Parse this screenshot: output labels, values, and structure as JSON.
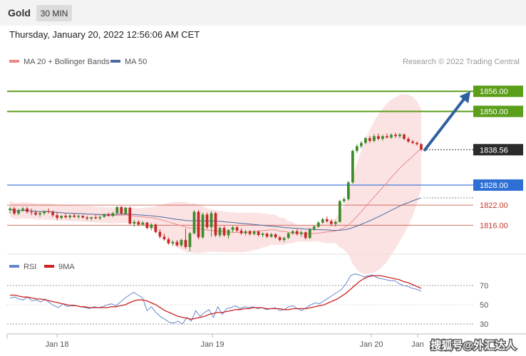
{
  "header": {
    "symbol": "Gold",
    "timeframe": "30 MIN",
    "timestamp": "Thursday, January 20, 2022 12:56:06 AM CET"
  },
  "legend": {
    "ma20_label": "MA 20 + Bollinger Bands",
    "ma50_label": "MA 50",
    "copyright": "Research © 2022 Trading Central",
    "colors": {
      "ma20": "#e88a8a",
      "ma50": "#4a6aa0",
      "bands": "#fbdada"
    }
  },
  "rsi_legend": {
    "rsi_label": "RSI",
    "ma9_label": "9MA",
    "colors": {
      "rsi": "#6688cc",
      "ma9": "#cc2222"
    }
  },
  "watermark": "搜狐号@外汇达人",
  "chart_data": [
    {
      "type": "candlestick",
      "ylim": [
        1808,
        1862
      ],
      "x_labels": [
        "Jan 18",
        "Jan 19",
        "Jan 20",
        "Jan"
      ],
      "current_price": {
        "label": "1838.56",
        "value": 1838.56
      },
      "levels": [
        {
          "label": "1856.00",
          "value": 1856.0,
          "kind": "resistance",
          "color": "#5a9e1a"
        },
        {
          "label": "1850.00",
          "value": 1850.0,
          "kind": "resistance",
          "color": "#5a9e1a"
        },
        {
          "label": "1828.00",
          "value": 1828.0,
          "kind": "pivot",
          "color": "#2e6fd6"
        },
        {
          "label": "1822.00",
          "value": 1822.0,
          "kind": "support",
          "color": "#c0392b"
        },
        {
          "label": "1816.00",
          "value": 1816.0,
          "kind": "support",
          "color": "#c0392b"
        }
      ],
      "projection": {
        "from": 1838.5,
        "to": 1856.0,
        "color": "#2e5fa0"
      },
      "candles": [
        [
          1820.5,
          1821.5,
          1819.5,
          1821.0
        ],
        [
          1821.0,
          1821.5,
          1819.0,
          1819.5
        ],
        [
          1819.5,
          1821.0,
          1819.0,
          1820.5
        ],
        [
          1820.5,
          1821.5,
          1820.0,
          1821.0
        ],
        [
          1821.0,
          1821.5,
          1819.5,
          1820.0
        ],
        [
          1820.0,
          1821.0,
          1819.0,
          1819.8
        ],
        [
          1819.8,
          1820.5,
          1818.8,
          1819.2
        ],
        [
          1819.2,
          1820.0,
          1818.5,
          1819.6
        ],
        [
          1819.6,
          1820.5,
          1819.0,
          1820.2
        ],
        [
          1820.2,
          1821.0,
          1819.5,
          1820.0
        ],
        [
          1820.0,
          1820.5,
          1818.5,
          1819.0
        ],
        [
          1819.0,
          1819.8,
          1817.5,
          1818.2
        ],
        [
          1818.2,
          1819.0,
          1817.8,
          1818.8
        ],
        [
          1818.8,
          1819.5,
          1818.0,
          1818.4
        ],
        [
          1818.4,
          1819.2,
          1817.8,
          1818.9
        ],
        [
          1818.9,
          1819.5,
          1818.2,
          1818.5
        ],
        [
          1818.5,
          1819.2,
          1817.9,
          1818.8
        ],
        [
          1818.8,
          1819.0,
          1818.0,
          1818.3
        ],
        [
          1818.3,
          1818.8,
          1817.5,
          1818.0
        ],
        [
          1818.0,
          1818.6,
          1817.4,
          1818.4
        ],
        [
          1818.4,
          1819.0,
          1817.8,
          1818.1
        ],
        [
          1818.1,
          1818.7,
          1817.6,
          1818.5
        ],
        [
          1818.5,
          1819.5,
          1818.3,
          1819.2
        ],
        [
          1819.2,
          1819.8,
          1818.6,
          1818.8
        ],
        [
          1818.8,
          1820.0,
          1818.5,
          1819.6
        ],
        [
          1819.6,
          1821.8,
          1819.4,
          1821.4
        ],
        [
          1821.4,
          1821.8,
          1819.2,
          1819.5
        ],
        [
          1819.5,
          1821.5,
          1819.0,
          1821.2
        ],
        [
          1821.2,
          1821.6,
          1816.2,
          1816.5
        ],
        [
          1816.5,
          1817.6,
          1815.6,
          1817.0
        ],
        [
          1817.0,
          1817.5,
          1815.8,
          1816.2
        ],
        [
          1816.2,
          1817.2,
          1815.9,
          1816.8
        ],
        [
          1816.8,
          1817.0,
          1814.8,
          1815.2
        ],
        [
          1815.2,
          1816.6,
          1814.5,
          1816.2
        ],
        [
          1816.2,
          1816.5,
          1813.6,
          1814.0
        ],
        [
          1814.0,
          1814.8,
          1812.0,
          1812.6
        ],
        [
          1812.6,
          1813.5,
          1811.4,
          1811.8
        ],
        [
          1811.8,
          1812.4,
          1810.2,
          1810.6
        ],
        [
          1810.6,
          1811.5,
          1809.8,
          1811.0
        ],
        [
          1811.0,
          1811.6,
          1809.6,
          1810.0
        ],
        [
          1810.0,
          1812.0,
          1809.5,
          1811.6
        ],
        [
          1811.6,
          1815.0,
          1809.0,
          1809.5
        ],
        [
          1809.5,
          1814.0,
          1808.2,
          1813.6
        ],
        [
          1813.6,
          1820.5,
          1813.2,
          1820.0
        ],
        [
          1820.0,
          1820.6,
          1811.8,
          1812.4
        ],
        [
          1812.4,
          1819.8,
          1812.0,
          1819.2
        ],
        [
          1819.2,
          1819.8,
          1814.8,
          1815.4
        ],
        [
          1815.4,
          1820.2,
          1812.6,
          1819.6
        ],
        [
          1819.6,
          1820.0,
          1812.5,
          1813.0
        ],
        [
          1813.0,
          1815.6,
          1812.4,
          1815.2
        ],
        [
          1815.2,
          1815.8,
          1812.6,
          1813.0
        ],
        [
          1813.0,
          1814.8,
          1812.0,
          1814.6
        ],
        [
          1814.6,
          1815.8,
          1813.8,
          1815.4
        ],
        [
          1815.4,
          1815.8,
          1813.9,
          1814.4
        ],
        [
          1814.4,
          1815.1,
          1813.2,
          1813.6
        ],
        [
          1813.6,
          1814.6,
          1813.0,
          1814.2
        ],
        [
          1814.2,
          1814.6,
          1812.9,
          1813.4
        ],
        [
          1813.4,
          1814.5,
          1813.0,
          1814.1
        ],
        [
          1814.1,
          1814.5,
          1812.7,
          1813.1
        ],
        [
          1813.1,
          1813.9,
          1812.4,
          1813.5
        ],
        [
          1813.5,
          1813.8,
          1812.2,
          1812.6
        ],
        [
          1812.6,
          1813.7,
          1812.3,
          1813.3
        ],
        [
          1813.3,
          1813.6,
          1812.0,
          1812.4
        ],
        [
          1812.4,
          1812.8,
          1811.2,
          1811.6
        ],
        [
          1811.6,
          1812.6,
          1811.0,
          1812.2
        ],
        [
          1812.2,
          1813.9,
          1811.9,
          1813.6
        ],
        [
          1813.6,
          1814.6,
          1813.1,
          1814.2
        ],
        [
          1814.2,
          1814.8,
          1812.9,
          1813.4
        ],
        [
          1813.4,
          1814.4,
          1812.6,
          1813.9
        ],
        [
          1813.9,
          1814.2,
          1811.8,
          1812.2
        ],
        [
          1812.2,
          1815.2,
          1811.9,
          1814.9
        ],
        [
          1814.9,
          1816.1,
          1814.4,
          1815.6
        ],
        [
          1815.6,
          1817.2,
          1815.2,
          1816.8
        ],
        [
          1816.8,
          1818.2,
          1816.4,
          1817.8
        ],
        [
          1817.8,
          1818.6,
          1816.8,
          1817.2
        ],
        [
          1817.2,
          1817.8,
          1815.8,
          1816.4
        ],
        [
          1816.4,
          1817.4,
          1815.6,
          1817.0
        ],
        [
          1817.0,
          1823.6,
          1816.8,
          1823.2
        ],
        [
          1823.2,
          1824.4,
          1822.6,
          1823.8
        ],
        [
          1823.8,
          1829.2,
          1823.4,
          1828.8
        ],
        [
          1828.8,
          1838.6,
          1828.4,
          1838.2
        ],
        [
          1838.2,
          1840.2,
          1837.6,
          1839.6
        ],
        [
          1839.6,
          1841.2,
          1839.0,
          1840.6
        ],
        [
          1840.6,
          1842.4,
          1840.2,
          1842.0
        ],
        [
          1842.0,
          1842.6,
          1840.6,
          1841.2
        ],
        [
          1841.2,
          1843.2,
          1840.8,
          1842.6
        ],
        [
          1842.6,
          1843.4,
          1841.4,
          1841.8
        ],
        [
          1841.8,
          1843.0,
          1841.2,
          1842.6
        ],
        [
          1842.6,
          1843.4,
          1841.9,
          1842.2
        ],
        [
          1842.2,
          1843.5,
          1841.8,
          1843.0
        ],
        [
          1843.0,
          1843.6,
          1842.1,
          1842.6
        ],
        [
          1842.6,
          1843.5,
          1842.0,
          1843.1
        ],
        [
          1843.1,
          1843.4,
          1841.4,
          1841.8
        ],
        [
          1841.8,
          1842.4,
          1840.6,
          1841.0
        ],
        [
          1841.0,
          1841.5,
          1840.2,
          1840.6
        ],
        [
          1840.6,
          1841.0,
          1839.8,
          1840.2
        ],
        [
          1840.2,
          1840.5,
          1838.2,
          1838.6
        ]
      ]
    },
    {
      "type": "line",
      "ylim": [
        22,
        84
      ],
      "yticks": [
        70,
        50,
        30
      ],
      "rsi_ref_levels": [
        70,
        30
      ],
      "series": [
        {
          "name": "RSI",
          "values": [
            57,
            58,
            56,
            55,
            58,
            54,
            55,
            53,
            56,
            52,
            49,
            47,
            51,
            48,
            50,
            49,
            48,
            47,
            46,
            48,
            47,
            48,
            50,
            51,
            49,
            53,
            57,
            60,
            63,
            60,
            57,
            44,
            48,
            42,
            38,
            35,
            32,
            31,
            33,
            30,
            37,
            33,
            44,
            38,
            42,
            45,
            37,
            48,
            40,
            46,
            47,
            49,
            46,
            48,
            47,
            48,
            46,
            47,
            45,
            46,
            47,
            44,
            45,
            48,
            49,
            46,
            44,
            47,
            50,
            52,
            51,
            54,
            57,
            60,
            63,
            66,
            72,
            80,
            82,
            81,
            79,
            80,
            81,
            78,
            77,
            76,
            75,
            75,
            72,
            70,
            69,
            67,
            66,
            64
          ]
        },
        {
          "name": "9MA",
          "values": [
            60,
            60,
            59,
            58,
            58,
            57,
            56,
            56,
            55,
            54,
            53,
            52,
            51,
            50,
            49,
            49,
            48,
            48,
            47,
            47,
            47,
            47,
            47,
            48,
            48,
            49,
            50,
            52,
            54,
            55,
            55,
            54,
            52,
            50,
            47,
            44,
            42,
            40,
            38,
            37,
            36,
            35,
            36,
            37,
            38,
            40,
            41,
            42,
            42,
            43,
            44,
            45,
            45,
            46,
            46,
            47,
            47,
            47,
            46,
            46,
            46,
            46,
            45,
            45,
            46,
            46,
            46,
            46,
            47,
            48,
            49,
            50,
            52,
            54,
            56,
            59,
            62,
            66,
            70,
            74,
            77,
            79,
            80,
            80,
            80,
            79,
            78,
            77,
            76,
            74,
            73,
            71,
            69,
            67
          ]
        }
      ]
    }
  ]
}
